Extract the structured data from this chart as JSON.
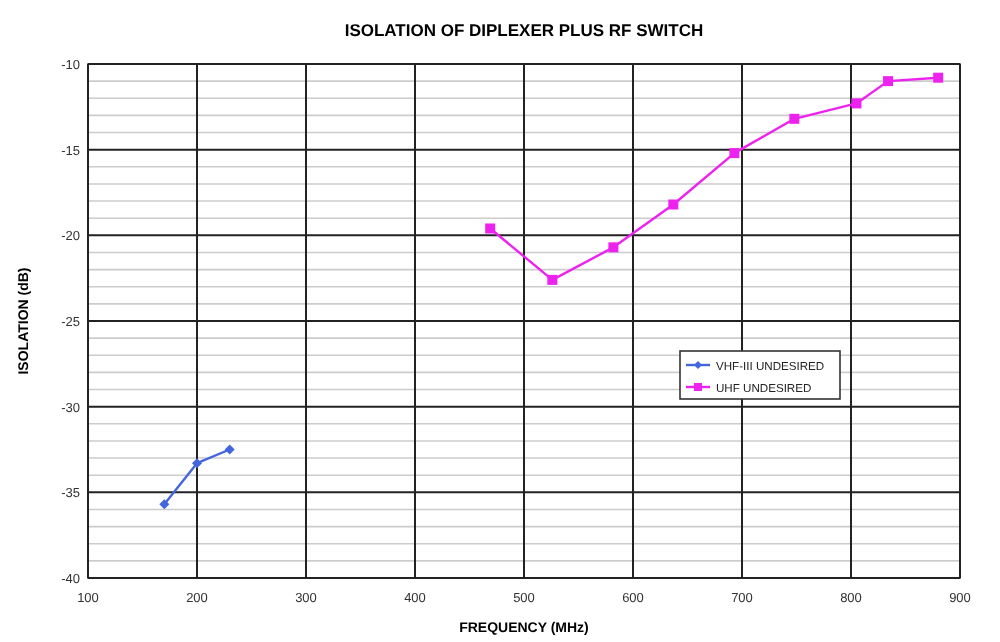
{
  "chart_data": {
    "type": "line",
    "title": "ISOLATION OF DIPLEXER PLUS RF SWITCH",
    "xlabel": "FREQUENCY (MHz)",
    "ylabel": "ISOLATION (dB)",
    "xlim": [
      100,
      900
    ],
    "xticks": [
      100,
      200,
      300,
      400,
      500,
      600,
      700,
      800,
      900
    ],
    "ylim": [
      -40,
      -10
    ],
    "yticks": [
      -40,
      {
        "value": -39,
        "label": null
      },
      {
        "value": -38,
        "label": null
      },
      {
        "value": -37,
        "label": null
      },
      {
        "value": -36,
        "label": null
      },
      -35,
      {
        "value": -34,
        "label": null
      },
      {
        "value": -33,
        "label": null
      },
      {
        "value": -32,
        "label": null
      },
      {
        "value": -31,
        "label": null
      },
      -30,
      {
        "value": -29,
        "label": null
      },
      {
        "value": -28,
        "label": null
      },
      {
        "value": -27,
        "label": null
      },
      {
        "value": -26,
        "label": null
      },
      -25,
      {
        "value": -24,
        "label": null
      },
      {
        "value": -23,
        "label": null
      },
      {
        "value": -22,
        "label": null
      },
      {
        "value": -21,
        "label": null
      },
      -20,
      {
        "value": -19,
        "label": null
      },
      {
        "value": -18,
        "label": null
      },
      {
        "value": -17,
        "label": null
      },
      {
        "value": -16,
        "label": null
      },
      -15,
      {
        "value": -14,
        "label": null
      },
      {
        "value": -13,
        "label": null
      },
      {
        "value": -12,
        "label": null
      },
      {
        "value": -11,
        "label": null
      },
      -10
    ],
    "grid": true,
    "legend": "right",
    "line_style": "solid",
    "series": [
      {
        "name": "VHF-III UNDESIRED",
        "color": "#4466dd",
        "marker": "diamond",
        "x": [
          170,
          200,
          230
        ],
        "values": [
          -35.7,
          -33.3,
          -32.5
        ]
      },
      {
        "name": "UHF UNDESIRED",
        "color": "#ee22ee",
        "marker": "square",
        "x": [
          469,
          526,
          582,
          637,
          693,
          748,
          805,
          834,
          880
        ],
        "values": [
          -19.6,
          -22.6,
          -20.7,
          -18.2,
          -15.2,
          -13.2,
          -12.3,
          -11.0,
          -10.8
        ]
      }
    ]
  }
}
